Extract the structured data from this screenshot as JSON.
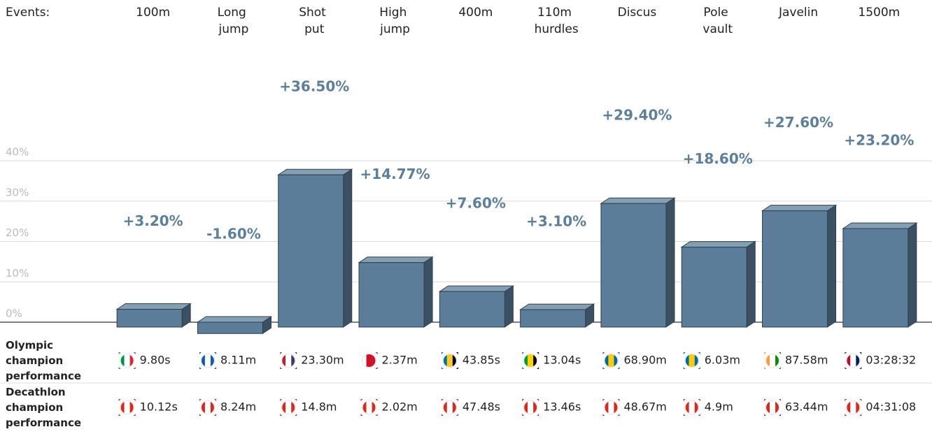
{
  "chart_data": {
    "type": "bar",
    "category_label": "Events:",
    "categories": [
      "100m",
      "Long jump",
      "Shot put",
      "High jump",
      "400m",
      "110m hurdles",
      "Discus",
      "Pole vault",
      "Javelin",
      "1500m"
    ],
    "values": [
      3.2,
      -1.6,
      36.5,
      14.77,
      7.6,
      3.1,
      29.4,
      18.6,
      27.6,
      23.2
    ],
    "value_labels": [
      "+3.20%",
      "-1.60%",
      "+36.50%",
      "+14.77%",
      "+7.60%",
      "+3.10%",
      "+29.40%",
      "+18.60%",
      "+27.60%",
      "+23.20%"
    ],
    "color": "#5b7d99",
    "ylim": [
      -3,
      40
    ],
    "yticks": [
      {
        "value": 0,
        "label": "0%"
      },
      {
        "value": 10,
        "label": "10%"
      },
      {
        "value": 20,
        "label": "20%"
      },
      {
        "value": 30,
        "label": "30%"
      },
      {
        "value": 40,
        "label": "40%"
      }
    ],
    "grid": true
  },
  "table": {
    "rows": [
      {
        "label": "Olympic champion performance",
        "values": [
          "9.80s",
          "8.11m",
          "23.30m",
          "2.37m",
          "43.85s",
          "13.04s",
          "68.90m",
          "6.03m",
          "87.58m",
          "03:28:32"
        ]
      },
      {
        "label": "Decathlon champion performance",
        "values": [
          "10.12s",
          "8.24m",
          "14.8m",
          "2.02m",
          "47.48s",
          "13.46s",
          "48.67m",
          "4.9m",
          "63.44m",
          "04:31:08"
        ]
      }
    ]
  }
}
